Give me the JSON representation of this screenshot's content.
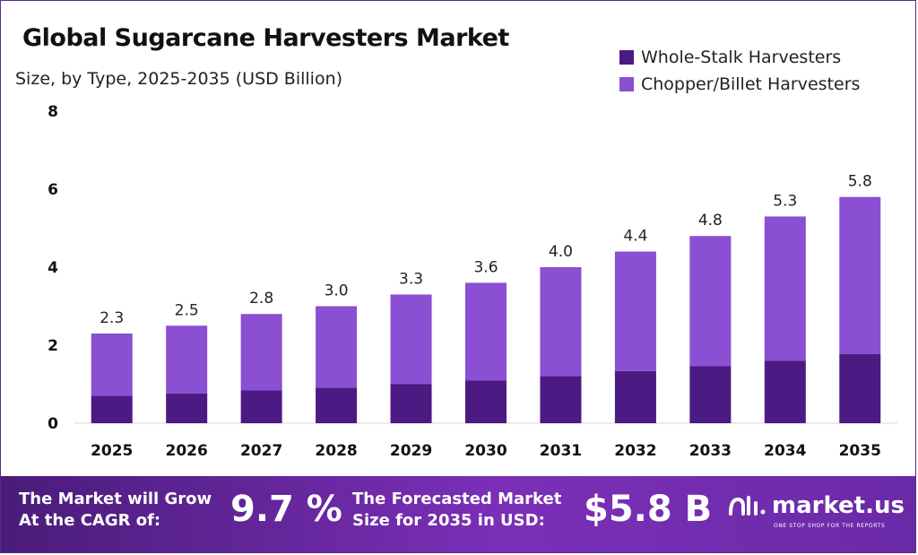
{
  "chart_data": {
    "type": "bar",
    "stacked": true,
    "title": "Global Sugarcane Harvesters Market",
    "subtitle": "Size, by Type, 2025-2035 (USD Billion)",
    "categories": [
      "2025",
      "2026",
      "2027",
      "2028",
      "2029",
      "2030",
      "2031",
      "2032",
      "2033",
      "2034",
      "2035"
    ],
    "series": [
      {
        "name": "Whole-Stalk Harvesters",
        "values": [
          0.7,
          0.76,
          0.84,
          0.91,
          1.0,
          1.1,
          1.21,
          1.34,
          1.46,
          1.6,
          1.77
        ]
      },
      {
        "name": "Chopper/Billet Harvesters",
        "values": [
          1.6,
          1.74,
          1.96,
          2.09,
          2.3,
          2.5,
          2.79,
          3.06,
          3.34,
          3.7,
          4.03
        ]
      }
    ],
    "totals": [
      "2.3",
      "2.5",
      "2.8",
      "3.0",
      "3.3",
      "3.6",
      "4.0",
      "4.4",
      "4.8",
      "5.3",
      "5.8"
    ],
    "ylim": [
      0,
      8
    ],
    "yticks": [
      "0",
      "2",
      "4",
      "6",
      "8"
    ],
    "xlabel": "",
    "ylabel": "",
    "legend_position": "top-right",
    "grid": false,
    "colors": {
      "whole_stalk": "#4b1a82",
      "chopper": "#8a4fd2"
    }
  },
  "footer": {
    "cagr_label_line1": "The Market will Grow",
    "cagr_label_line2": "At the CAGR of:",
    "cagr_value": "9.7 %",
    "forecast_label_line1": "The Forecasted Market",
    "forecast_label_line2": "Size for 2035 in USD:",
    "forecast_value": "$5.8 B",
    "brand_name": "market.us",
    "brand_tagline": "ONE STOP SHOP FOR THE REPORTS"
  }
}
